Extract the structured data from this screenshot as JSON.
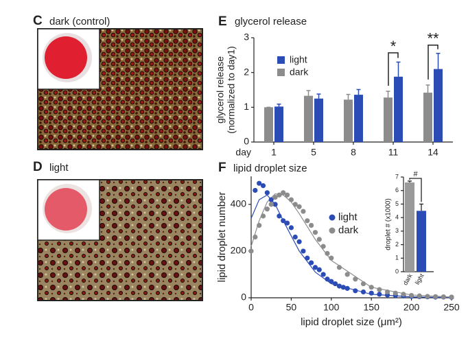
{
  "image_panels": [
    {
      "letter": "C",
      "title": "dark (control)"
    },
    {
      "letter": "D",
      "title": "light"
    }
  ],
  "chart_data": [
    {
      "type": "bar",
      "letter": "E",
      "title": "glycerol release",
      "y_label": [
        "glycerol release",
        "(normalized to day1)"
      ],
      "x_label": "day",
      "categories": [
        "1",
        "5",
        "8",
        "11",
        "14"
      ],
      "series": [
        {
          "name": "dark",
          "color": "#8c8c8c",
          "values": [
            1.0,
            1.33,
            1.22,
            1.28,
            1.42
          ],
          "errors": [
            0,
            0.15,
            0.15,
            0.18,
            0.22
          ]
        },
        {
          "name": "light",
          "color": "#2b4bb5",
          "values": [
            1.02,
            1.25,
            1.36,
            1.88,
            2.1
          ],
          "errors": [
            0.07,
            0.13,
            0.15,
            0.42,
            0.45
          ]
        }
      ],
      "legend_order": [
        1,
        0
      ],
      "annotations": [
        {
          "text": "*",
          "category": "11"
        },
        {
          "text": "**",
          "category": "14"
        }
      ],
      "ylim": [
        0,
        3
      ],
      "yticks": [
        0,
        1,
        2,
        3
      ]
    },
    {
      "type": "scatter",
      "letter": "F",
      "title": "lipid droplet size",
      "y_label": "lipid droplet number",
      "x_label": "lipid droplet size (μm²)",
      "series": [
        {
          "name": "light",
          "color": "#2b4bb5",
          "x": [
            5,
            10,
            15,
            20,
            25,
            30,
            35,
            40,
            45,
            50,
            55,
            60,
            65,
            70,
            75,
            80,
            85,
            90,
            95,
            100,
            105,
            110,
            115,
            120,
            130,
            140,
            150,
            160,
            170,
            180,
            190,
            200,
            210,
            220,
            230,
            240,
            250
          ],
          "values": [
            460,
            490,
            480,
            450,
            420,
            400,
            350,
            330,
            320,
            300,
            260,
            240,
            200,
            170,
            150,
            130,
            120,
            100,
            80,
            70,
            60,
            50,
            45,
            40,
            30,
            25,
            20,
            15,
            12,
            10,
            8,
            6,
            5,
            4,
            3,
            3,
            2
          ]
        },
        {
          "name": "dark",
          "color": "#8c8c8c",
          "x": [
            0,
            5,
            10,
            15,
            20,
            25,
            30,
            35,
            40,
            45,
            50,
            55,
            60,
            65,
            70,
            75,
            80,
            85,
            90,
            95,
            100,
            110,
            120,
            130,
            140,
            150,
            160,
            170,
            180,
            190,
            200,
            210,
            220,
            230,
            240,
            250
          ],
          "values": [
            200,
            260,
            310,
            350,
            380,
            400,
            430,
            440,
            450,
            440,
            420,
            400,
            390,
            370,
            330,
            310,
            280,
            250,
            220,
            190,
            170,
            130,
            100,
            80,
            60,
            45,
            35,
            25,
            20,
            15,
            10,
            8,
            6,
            5,
            4,
            3
          ]
        }
      ],
      "fits": [
        {
          "color": "#2b4bb5",
          "x": [
            0,
            10,
            20,
            30,
            40,
            60,
            80,
            100,
            150,
            200,
            250
          ],
          "values": [
            340,
            420,
            440,
            400,
            330,
            200,
            110,
            60,
            15,
            4,
            1
          ]
        },
        {
          "color": "#8c8c8c",
          "x": [
            0,
            10,
            20,
            30,
            40,
            50,
            60,
            80,
            100,
            150,
            200,
            250
          ],
          "values": [
            220,
            330,
            410,
            445,
            440,
            410,
            360,
            250,
            160,
            45,
            12,
            3
          ]
        }
      ],
      "xlim": [
        0,
        250
      ],
      "xticks": [
        0,
        50,
        100,
        150,
        200,
        250
      ],
      "ylim": [
        0,
        520
      ],
      "yticks": [
        0,
        200,
        400
      ]
    },
    {
      "type": "bar",
      "y_label": "droplet # (x1000)",
      "categories": [
        "dark",
        "light"
      ],
      "values": [
        6.6,
        4.5
      ],
      "errors": [
        0.1,
        0.5
      ],
      "colors": [
        "#9a9a9a",
        "#2b4bb5"
      ],
      "annotations": [
        {
          "text": "#"
        }
      ],
      "ylim": [
        0,
        7
      ],
      "yticks": [
        0,
        1,
        2,
        3,
        4,
        5,
        6,
        7
      ]
    }
  ]
}
